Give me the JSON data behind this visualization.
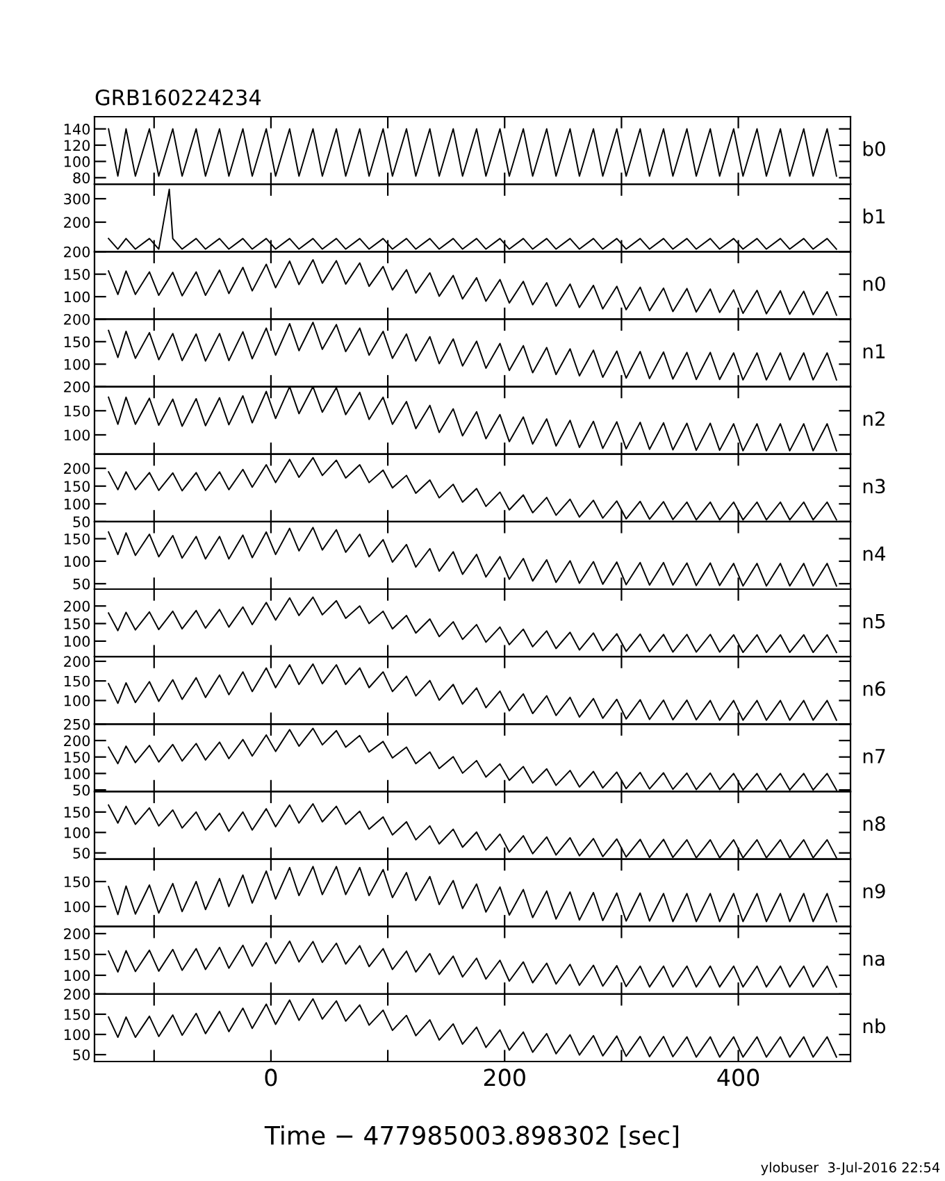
{
  "chart_data": [
    {
      "type": "line",
      "title": "GRB160224234",
      "x": [
        -139,
        -131,
        -124,
        -116,
        -104,
        -96,
        -84,
        -76,
        -64,
        -56,
        -44,
        -36,
        -24,
        -16,
        -4,
        4,
        16,
        24,
        36,
        44,
        56,
        64,
        76,
        84,
        96,
        104,
        116,
        124,
        136,
        144,
        156,
        164,
        176,
        184,
        196,
        204,
        216,
        224,
        236,
        244,
        256,
        264,
        276,
        284,
        296,
        304,
        316,
        324,
        336,
        344,
        356,
        364,
        376,
        384,
        396,
        404,
        416,
        424,
        436,
        444,
        456,
        464,
        476,
        484
      ],
      "xlim": [
        -151,
        496
      ],
      "xticks": [
        {
          "value": -100,
          "label": null
        },
        0,
        {
          "value": 100,
          "label": null
        },
        200,
        {
          "value": 300,
          "label": null
        },
        400
      ],
      "ylim": [
        72,
        155
      ],
      "yticks": [
        80,
        100,
        120,
        140
      ],
      "tick_labels": "y",
      "grid": false,
      "legend": "right",
      "series": [
        {
          "name": "b0",
          "color": "#000000",
          "values": [
            140,
            82,
            140,
            82,
            140,
            82,
            140,
            82,
            140,
            82,
            140,
            82,
            140,
            82,
            140,
            82,
            140,
            82,
            140,
            82,
            140,
            82,
            140,
            82,
            140,
            82,
            140,
            82,
            140,
            82,
            140,
            82,
            140,
            82,
            140,
            82,
            140,
            82,
            140,
            82,
            140,
            82,
            140,
            82,
            140,
            82,
            140,
            82,
            140,
            82,
            140,
            82,
            140,
            82,
            140,
            82,
            140,
            82,
            140,
            82,
            140,
            82,
            140,
            82
          ]
        }
      ]
    },
    {
      "type": "line",
      "x": [
        -139,
        -131,
        -124,
        -116,
        -104,
        -96,
        -87,
        -84,
        -76,
        -64,
        -56,
        -44,
        -36,
        -24,
        -16,
        -4,
        4,
        16,
        24,
        36,
        44,
        56,
        64,
        76,
        84,
        96,
        104,
        116,
        124,
        136,
        144,
        156,
        164,
        176,
        184,
        196,
        204,
        216,
        224,
        236,
        244,
        256,
        264,
        276,
        284,
        296,
        304,
        316,
        324,
        336,
        344,
        356,
        364,
        376,
        384,
        396,
        404,
        416,
        424,
        436,
        444,
        456,
        464,
        476,
        484
      ],
      "xlim": [
        -151,
        496
      ],
      "xticks": [
        {
          "value": -100,
          "label": null
        },
        0,
        {
          "value": 100,
          "label": null
        },
        200,
        {
          "value": 300,
          "label": null
        },
        400
      ],
      "ylim": [
        74,
        362
      ],
      "yticks": [
        200,
        300
      ],
      "tick_labels": "y",
      "grid": false,
      "legend": "right",
      "series": [
        {
          "name": "b1",
          "color": "#000000",
          "values": [
            130,
            85,
            130,
            85,
            130,
            85,
            340,
            130,
            85,
            130,
            85,
            130,
            85,
            130,
            85,
            130,
            85,
            130,
            85,
            130,
            85,
            130,
            85,
            130,
            85,
            130,
            85,
            130,
            85,
            130,
            85,
            130,
            85,
            130,
            85,
            130,
            85,
            130,
            85,
            130,
            85,
            130,
            85,
            130,
            85,
            130,
            85,
            130,
            85,
            130,
            85,
            130,
            85,
            130,
            85,
            130,
            85,
            130,
            85,
            130,
            85,
            130,
            85,
            130,
            85
          ]
        }
      ]
    },
    {
      "type": "line",
      "x": [
        -139,
        -131,
        -124,
        -116,
        -104,
        -96,
        -84,
        -76,
        -64,
        -56,
        -44,
        -36,
        -24,
        -16,
        -4,
        4,
        16,
        24,
        36,
        44,
        56,
        64,
        76,
        84,
        96,
        104,
        116,
        124,
        136,
        144,
        156,
        164,
        176,
        184,
        196,
        204,
        216,
        224,
        236,
        244,
        256,
        264,
        276,
        284,
        296,
        304,
        316,
        324,
        336,
        344,
        356,
        364,
        376,
        384,
        396,
        404,
        416,
        424,
        436,
        444,
        456,
        464,
        476,
        484
      ],
      "xlim": [
        -151,
        496
      ],
      "xticks": [
        {
          "value": -100,
          "label": null
        },
        0,
        {
          "value": 100,
          "label": null
        },
        200,
        {
          "value": 300,
          "label": null
        },
        400
      ],
      "ylim": [
        50,
        200
      ],
      "yticks": [
        100,
        150,
        200
      ],
      "tick_labels": "y",
      "grid": false,
      "legend": "right",
      "series": [
        {
          "name": "n0",
          "color": "#000000",
          "values": [
            157,
            105,
            157,
            105,
            155,
            103,
            154,
            102,
            155,
            103,
            159,
            107,
            165,
            113,
            172,
            120,
            179,
            127,
            182,
            130,
            180,
            128,
            175,
            123,
            167,
            115,
            160,
            108,
            153,
            101,
            147,
            95,
            142,
            90,
            138,
            86,
            134,
            82,
            131,
            79,
            128,
            76,
            125,
            73,
            123,
            71,
            121,
            69,
            119,
            67,
            118,
            66,
            117,
            65,
            115,
            63,
            114,
            62,
            113,
            61,
            112,
            60,
            111,
            59
          ]
        }
      ]
    },
    {
      "type": "line",
      "x": [
        -139,
        -131,
        -124,
        -116,
        -104,
        -96,
        -84,
        -76,
        -64,
        -56,
        -44,
        -36,
        -24,
        -16,
        -4,
        4,
        16,
        24,
        36,
        44,
        56,
        64,
        76,
        84,
        96,
        104,
        116,
        124,
        136,
        144,
        156,
        164,
        176,
        184,
        196,
        204,
        216,
        224,
        236,
        244,
        256,
        264,
        276,
        284,
        296,
        304,
        316,
        324,
        336,
        344,
        356,
        364,
        376,
        384,
        396,
        404,
        416,
        424,
        436,
        444,
        456,
        464,
        476,
        484
      ],
      "xlim": [
        -151,
        496
      ],
      "xticks": [
        {
          "value": -100,
          "label": null
        },
        0,
        {
          "value": 100,
          "label": null
        },
        200,
        {
          "value": 300,
          "label": null
        },
        400
      ],
      "ylim": [
        50,
        200
      ],
      "yticks": [
        100,
        150,
        200
      ],
      "tick_labels": "y",
      "grid": false,
      "legend": "right",
      "series": [
        {
          "name": "n1",
          "color": "#000000",
          "values": [
            175,
            115,
            173,
            113,
            170,
            110,
            168,
            108,
            167,
            107,
            168,
            108,
            172,
            112,
            180,
            120,
            190,
            130,
            193,
            133,
            188,
            128,
            180,
            120,
            173,
            113,
            167,
            107,
            161,
            101,
            156,
            96,
            151,
            91,
            146,
            86,
            141,
            81,
            137,
            77,
            134,
            74,
            131,
            71,
            129,
            69,
            128,
            68,
            127,
            67,
            126,
            66,
            126,
            66,
            125,
            65,
            125,
            65,
            125,
            65,
            125,
            65,
            125,
            65
          ]
        }
      ]
    },
    {
      "type": "line",
      "x": [
        -139,
        -131,
        -124,
        -116,
        -104,
        -96,
        -84,
        -76,
        -64,
        -56,
        -44,
        -36,
        -24,
        -16,
        -4,
        4,
        16,
        24,
        36,
        44,
        56,
        64,
        76,
        84,
        96,
        104,
        116,
        124,
        136,
        144,
        156,
        164,
        176,
        184,
        196,
        204,
        216,
        224,
        236,
        244,
        256,
        264,
        276,
        284,
        296,
        304,
        316,
        324,
        336,
        344,
        356,
        364,
        376,
        384,
        396,
        404,
        416,
        424,
        436,
        444,
        456,
        464,
        476,
        484
      ],
      "xlim": [
        -151,
        496
      ],
      "xticks": [
        {
          "value": -100,
          "label": null
        },
        0,
        {
          "value": 100,
          "label": null
        },
        200,
        {
          "value": 300,
          "label": null
        },
        400
      ],
      "ylim": [
        60,
        200
      ],
      "yticks": [
        100,
        150,
        200
      ],
      "tick_labels": "y",
      "grid": false,
      "legend": "right",
      "series": [
        {
          "name": "n2",
          "color": "#000000",
          "values": [
            178,
            122,
            178,
            122,
            176,
            120,
            174,
            118,
            175,
            119,
            177,
            121,
            181,
            125,
            190,
            134,
            200,
            144,
            200,
            147,
            198,
            142,
            188,
            132,
            178,
            122,
            169,
            113,
            161,
            105,
            154,
            98,
            148,
            92,
            142,
            86,
            137,
            81,
            133,
            77,
            130,
            74,
            128,
            72,
            127,
            71,
            126,
            70,
            125,
            69,
            124,
            68,
            124,
            68,
            123,
            67,
            123,
            67,
            123,
            67,
            123,
            67,
            123,
            67
          ]
        }
      ]
    },
    {
      "type": "line",
      "x": [
        -139,
        -131,
        -124,
        -116,
        -104,
        -96,
        -84,
        -76,
        -64,
        -56,
        -44,
        -36,
        -24,
        -16,
        -4,
        4,
        16,
        24,
        36,
        44,
        56,
        64,
        76,
        84,
        96,
        104,
        116,
        124,
        136,
        144,
        156,
        164,
        176,
        184,
        196,
        204,
        216,
        224,
        236,
        244,
        256,
        264,
        276,
        284,
        296,
        304,
        316,
        324,
        336,
        344,
        356,
        364,
        376,
        384,
        396,
        404,
        416,
        424,
        436,
        444,
        456,
        464,
        476,
        484
      ],
      "xlim": [
        -151,
        496
      ],
      "xticks": [
        {
          "value": -100,
          "label": null
        },
        0,
        {
          "value": 100,
          "label": null
        },
        200,
        {
          "value": 300,
          "label": null
        },
        400
      ],
      "ylim": [
        50,
        240
      ],
      "yticks": [
        50,
        100,
        150,
        200
      ],
      "tick_labels": "y",
      "grid": false,
      "legend": "right",
      "series": [
        {
          "name": "n3",
          "color": "#000000",
          "values": [
            190,
            140,
            190,
            140,
            188,
            138,
            187,
            137,
            188,
            138,
            190,
            140,
            197,
            147,
            210,
            160,
            225,
            175,
            230,
            180,
            223,
            173,
            210,
            160,
            195,
            145,
            180,
            130,
            167,
            117,
            155,
            105,
            143,
            93,
            133,
            83,
            125,
            75,
            118,
            68,
            113,
            63,
            110,
            60,
            108,
            58,
            107,
            57,
            106,
            56,
            105,
            55,
            105,
            55,
            105,
            55,
            105,
            55,
            105,
            55,
            105,
            55,
            105,
            55
          ]
        }
      ]
    },
    {
      "type": "line",
      "x": [
        -139,
        -131,
        -124,
        -116,
        -104,
        -96,
        -84,
        -76,
        -64,
        -56,
        -44,
        -36,
        -24,
        -16,
        -4,
        4,
        16,
        24,
        36,
        44,
        56,
        64,
        76,
        84,
        96,
        104,
        116,
        124,
        136,
        144,
        156,
        164,
        176,
        184,
        196,
        204,
        216,
        224,
        236,
        244,
        256,
        264,
        276,
        284,
        296,
        304,
        316,
        324,
        336,
        344,
        356,
        364,
        376,
        384,
        396,
        404,
        416,
        424,
        436,
        444,
        456,
        464,
        476,
        484
      ],
      "xlim": [
        -151,
        496
      ],
      "xticks": [
        {
          "value": -100,
          "label": null
        },
        0,
        {
          "value": 100,
          "label": null
        },
        200,
        {
          "value": 300,
          "label": null
        },
        400
      ],
      "ylim": [
        38,
        188
      ],
      "yticks": [
        50,
        100,
        150
      ],
      "tick_labels": "y",
      "grid": false,
      "legend": "right",
      "series": [
        {
          "name": "n4",
          "color": "#000000",
          "values": [
            165,
            115,
            163,
            113,
            160,
            110,
            157,
            107,
            155,
            105,
            155,
            105,
            158,
            108,
            165,
            115,
            173,
            123,
            175,
            125,
            170,
            120,
            160,
            110,
            148,
            98,
            137,
            87,
            128,
            78,
            121,
            71,
            115,
            65,
            110,
            60,
            106,
            56,
            103,
            53,
            101,
            51,
            99,
            49,
            98,
            48,
            97,
            47,
            97,
            47,
            96,
            46,
            96,
            46,
            95,
            45,
            95,
            45,
            95,
            45,
            95,
            45,
            95,
            45
          ]
        }
      ]
    },
    {
      "type": "line",
      "x": [
        -139,
        -131,
        -124,
        -116,
        -104,
        -96,
        -84,
        -76,
        -64,
        -56,
        -44,
        -36,
        -24,
        -16,
        -4,
        4,
        16,
        24,
        36,
        44,
        56,
        64,
        76,
        84,
        96,
        104,
        116,
        124,
        136,
        144,
        156,
        164,
        176,
        184,
        196,
        204,
        216,
        224,
        236,
        244,
        256,
        264,
        276,
        284,
        296,
        304,
        316,
        324,
        336,
        344,
        356,
        364,
        376,
        384,
        396,
        404,
        416,
        424,
        436,
        444,
        456,
        464,
        476,
        484
      ],
      "xlim": [
        -151,
        496
      ],
      "xticks": [
        {
          "value": -100,
          "label": null
        },
        0,
        {
          "value": 100,
          "label": null
        },
        200,
        {
          "value": 300,
          "label": null
        },
        400
      ],
      "ylim": [
        56,
        248
      ],
      "yticks": [
        100,
        150,
        200
      ],
      "tick_labels": "y",
      "grid": false,
      "legend": "right",
      "series": [
        {
          "name": "n5",
          "color": "#000000",
          "values": [
            180,
            130,
            182,
            132,
            183,
            133,
            185,
            135,
            187,
            137,
            190,
            140,
            197,
            147,
            210,
            160,
            223,
            173,
            225,
            175,
            215,
            165,
            200,
            150,
            185,
            135,
            173,
            123,
            163,
            113,
            155,
            105,
            147,
            97,
            140,
            90,
            134,
            84,
            129,
            79,
            125,
            75,
            123,
            73,
            121,
            71,
            120,
            70,
            119,
            69,
            119,
            69,
            119,
            69,
            118,
            68,
            118,
            68,
            118,
            68,
            118,
            68,
            118,
            68
          ]
        }
      ]
    },
    {
      "type": "line",
      "x": [
        -139,
        -131,
        -124,
        -116,
        -104,
        -96,
        -84,
        -76,
        -64,
        -56,
        -44,
        -36,
        -24,
        -16,
        -4,
        4,
        16,
        24,
        36,
        44,
        56,
        64,
        76,
        84,
        96,
        104,
        116,
        124,
        136,
        144,
        156,
        164,
        176,
        184,
        196,
        204,
        216,
        224,
        236,
        244,
        256,
        264,
        276,
        284,
        296,
        304,
        316,
        324,
        336,
        344,
        356,
        364,
        376,
        384,
        396,
        404,
        416,
        424,
        436,
        444,
        456,
        464,
        476,
        484
      ],
      "xlim": [
        -151,
        496
      ],
      "xticks": [
        {
          "value": -100,
          "label": null
        },
        0,
        {
          "value": 100,
          "label": null
        },
        200,
        {
          "value": 300,
          "label": null
        },
        400
      ],
      "ylim": [
        40,
        212
      ],
      "yticks": [
        100,
        150,
        200
      ],
      "tick_labels": "y",
      "grid": false,
      "legend": "right",
      "series": [
        {
          "name": "n6",
          "color": "#000000",
          "values": [
            143,
            93,
            145,
            95,
            148,
            98,
            153,
            103,
            158,
            108,
            165,
            115,
            173,
            123,
            183,
            133,
            191,
            141,
            193,
            143,
            191,
            141,
            183,
            133,
            173,
            123,
            162,
            112,
            151,
            101,
            141,
            91,
            132,
            82,
            124,
            74,
            117,
            67,
            112,
            62,
            108,
            58,
            105,
            55,
            103,
            53,
            102,
            52,
            101,
            51,
            101,
            51,
            100,
            50,
            100,
            50,
            100,
            50,
            100,
            50,
            100,
            50,
            100,
            50
          ]
        }
      ]
    },
    {
      "type": "line",
      "x": [
        -139,
        -131,
        -124,
        -116,
        -104,
        -96,
        -84,
        -76,
        -64,
        -56,
        -44,
        -36,
        -24,
        -16,
        -4,
        4,
        16,
        24,
        36,
        44,
        56,
        64,
        76,
        84,
        96,
        104,
        116,
        124,
        136,
        144,
        156,
        164,
        176,
        184,
        196,
        204,
        216,
        224,
        236,
        244,
        256,
        264,
        276,
        284,
        296,
        304,
        316,
        324,
        336,
        344,
        356,
        364,
        376,
        384,
        396,
        404,
        416,
        424,
        436,
        444,
        456,
        464,
        476,
        484
      ],
      "xlim": [
        -151,
        496
      ],
      "xticks": [
        {
          "value": -100,
          "label": null
        },
        0,
        {
          "value": 100,
          "label": null
        },
        200,
        {
          "value": 300,
          "label": null
        },
        400
      ],
      "ylim": [
        45,
        250
      ],
      "yticks": [
        50,
        100,
        150,
        200,
        250
      ],
      "tick_labels": "y",
      "grid": false,
      "legend": "right",
      "series": [
        {
          "name": "n7",
          "color": "#000000",
          "values": [
            180,
            130,
            183,
            133,
            185,
            135,
            188,
            138,
            191,
            141,
            195,
            145,
            203,
            153,
            217,
            167,
            233,
            183,
            237,
            187,
            230,
            180,
            215,
            165,
            197,
            147,
            180,
            130,
            165,
            115,
            151,
            101,
            139,
            89,
            129,
            79,
            121,
            71,
            114,
            64,
            109,
            59,
            106,
            56,
            104,
            54,
            103,
            53,
            102,
            52,
            101,
            51,
            101,
            51,
            100,
            50,
            100,
            50,
            100,
            50,
            100,
            50,
            100,
            50
          ]
        }
      ]
    },
    {
      "type": "line",
      "x": [
        -139,
        -131,
        -124,
        -116,
        -104,
        -96,
        -84,
        -76,
        -64,
        -56,
        -44,
        -36,
        -24,
        -16,
        -4,
        4,
        16,
        24,
        36,
        44,
        56,
        64,
        76,
        84,
        96,
        104,
        116,
        124,
        136,
        144,
        156,
        164,
        176,
        184,
        196,
        204,
        216,
        224,
        236,
        244,
        256,
        264,
        276,
        284,
        296,
        304,
        316,
        324,
        336,
        344,
        356,
        364,
        376,
        384,
        396,
        404,
        416,
        424,
        436,
        444,
        456,
        464,
        476,
        484
      ],
      "xlim": [
        -151,
        496
      ],
      "xticks": [
        {
          "value": -100,
          "label": null
        },
        0,
        {
          "value": 100,
          "label": null
        },
        200,
        {
          "value": 300,
          "label": null
        },
        400
      ],
      "ylim": [
        35,
        200
      ],
      "yticks": [
        50,
        100,
        150
      ],
      "tick_labels": "y",
      "grid": false,
      "legend": "right",
      "series": [
        {
          "name": "n8",
          "color": "#000000",
          "values": [
            167,
            123,
            164,
            120,
            160,
            116,
            155,
            111,
            150,
            106,
            147,
            103,
            150,
            106,
            158,
            114,
            167,
            123,
            170,
            126,
            164,
            120,
            152,
            108,
            138,
            94,
            126,
            82,
            116,
            72,
            108,
            64,
            101,
            57,
            96,
            52,
            92,
            48,
            89,
            45,
            87,
            43,
            85,
            41,
            84,
            40,
            83,
            39,
            83,
            39,
            82,
            38,
            82,
            38,
            82,
            38,
            82,
            38,
            82,
            38,
            82,
            38,
            82,
            38
          ]
        }
      ]
    },
    {
      "type": "line",
      "x": [
        -139,
        -131,
        -124,
        -116,
        -104,
        -96,
        -84,
        -76,
        -64,
        -56,
        -44,
        -36,
        -24,
        -16,
        -4,
        4,
        16,
        24,
        36,
        44,
        56,
        64,
        76,
        84,
        96,
        104,
        116,
        124,
        136,
        144,
        156,
        164,
        176,
        184,
        196,
        204,
        216,
        224,
        236,
        244,
        256,
        264,
        276,
        284,
        296,
        304,
        316,
        324,
        336,
        344,
        356,
        364,
        376,
        384,
        396,
        404,
        416,
        424,
        436,
        444,
        456,
        464,
        476,
        484
      ],
      "xlim": [
        -151,
        496
      ],
      "xticks": [
        {
          "value": -100,
          "label": null
        },
        0,
        {
          "value": 100,
          "label": null
        },
        200,
        {
          "value": 300,
          "label": null
        },
        400
      ],
      "ylim": [
        60,
        195
      ],
      "yticks": [
        100,
        150
      ],
      "tick_labels": "y",
      "grid": false,
      "legend": "right",
      "series": [
        {
          "name": "n9",
          "color": "#000000",
          "values": [
            140,
            84,
            141,
            85,
            143,
            87,
            146,
            90,
            150,
            94,
            156,
            100,
            163,
            107,
            171,
            115,
            178,
            122,
            180,
            124,
            180,
            124,
            178,
            122,
            174,
            118,
            168,
            112,
            160,
            104,
            152,
            96,
            145,
            89,
            139,
            83,
            134,
            78,
            131,
            75,
            129,
            73,
            128,
            72,
            127,
            71,
            127,
            71,
            126,
            70,
            126,
            70,
            126,
            70,
            126,
            70,
            126,
            70,
            126,
            70,
            126,
            70,
            126,
            70
          ]
        }
      ]
    },
    {
      "type": "line",
      "x": [
        -139,
        -131,
        -124,
        -116,
        -104,
        -96,
        -84,
        -76,
        -64,
        -56,
        -44,
        -36,
        -24,
        -16,
        -4,
        4,
        16,
        24,
        36,
        44,
        56,
        64,
        76,
        84,
        96,
        104,
        116,
        124,
        136,
        144,
        156,
        164,
        176,
        184,
        196,
        204,
        216,
        224,
        236,
        244,
        256,
        264,
        276,
        284,
        296,
        304,
        316,
        324,
        336,
        344,
        356,
        364,
        376,
        384,
        396,
        404,
        416,
        424,
        436,
        444,
        456,
        464,
        476,
        484
      ],
      "xlim": [
        -151,
        496
      ],
      "xticks": [
        {
          "value": -100,
          "label": null
        },
        0,
        {
          "value": 100,
          "label": null
        },
        200,
        {
          "value": 300,
          "label": null
        },
        400
      ],
      "ylim": [
        55,
        217
      ],
      "yticks": [
        100,
        150,
        200
      ],
      "tick_labels": "y",
      "grid": false,
      "legend": "right",
      "series": [
        {
          "name": "na",
          "color": "#000000",
          "values": [
            158,
            108,
            159,
            109,
            160,
            110,
            162,
            112,
            164,
            114,
            167,
            117,
            172,
            122,
            178,
            128,
            182,
            132,
            181,
            131,
            177,
            127,
            171,
            121,
            164,
            114,
            158,
            108,
            152,
            102,
            146,
            96,
            141,
            91,
            136,
            86,
            132,
            82,
            129,
            79,
            126,
            76,
            124,
            74,
            123,
            73,
            122,
            72,
            122,
            72,
            122,
            72,
            122,
            72,
            122,
            72,
            122,
            72,
            122,
            72,
            122,
            72,
            122,
            72
          ]
        }
      ]
    },
    {
      "type": "line",
      "x": [
        -139,
        -131,
        -124,
        -116,
        -104,
        -96,
        -84,
        -76,
        -64,
        -56,
        -44,
        -36,
        -24,
        -16,
        -4,
        4,
        16,
        24,
        36,
        44,
        56,
        64,
        76,
        84,
        96,
        104,
        116,
        124,
        136,
        144,
        156,
        164,
        176,
        184,
        196,
        204,
        216,
        224,
        236,
        244,
        256,
        264,
        276,
        284,
        296,
        304,
        316,
        324,
        336,
        344,
        356,
        364,
        376,
        384,
        396,
        404,
        416,
        424,
        436,
        444,
        456,
        464,
        476,
        484
      ],
      "xlim": [
        -151,
        496
      ],
      "xticks": [
        {
          "value": -100,
          "label": null
        },
        0,
        {
          "value": 100,
          "label": null
        },
        200,
        {
          "value": 300,
          "label": null
        },
        400
      ],
      "ylim": [
        33,
        200
      ],
      "yticks": [
        50,
        100,
        150,
        200
      ],
      "grid": false,
      "legend": "right",
      "xlabel": "Time − 477985003.898302 [sec]",
      "annotations": [
        "ylobuser  3-Jul-2016 22:54"
      ],
      "series": [
        {
          "name": "nb",
          "color": "#000000",
          "values": [
            143,
            93,
            143,
            93,
            145,
            95,
            148,
            98,
            152,
            102,
            157,
            107,
            165,
            115,
            175,
            125,
            185,
            135,
            188,
            138,
            183,
            133,
            173,
            123,
            160,
            110,
            147,
            97,
            136,
            86,
            126,
            76,
            118,
            68,
            111,
            61,
            106,
            56,
            102,
            52,
            99,
            49,
            97,
            47,
            96,
            46,
            95,
            45,
            95,
            45,
            94,
            44,
            94,
            44,
            94,
            44,
            94,
            44,
            94,
            44,
            94,
            44,
            94,
            44
          ]
        }
      ]
    }
  ]
}
